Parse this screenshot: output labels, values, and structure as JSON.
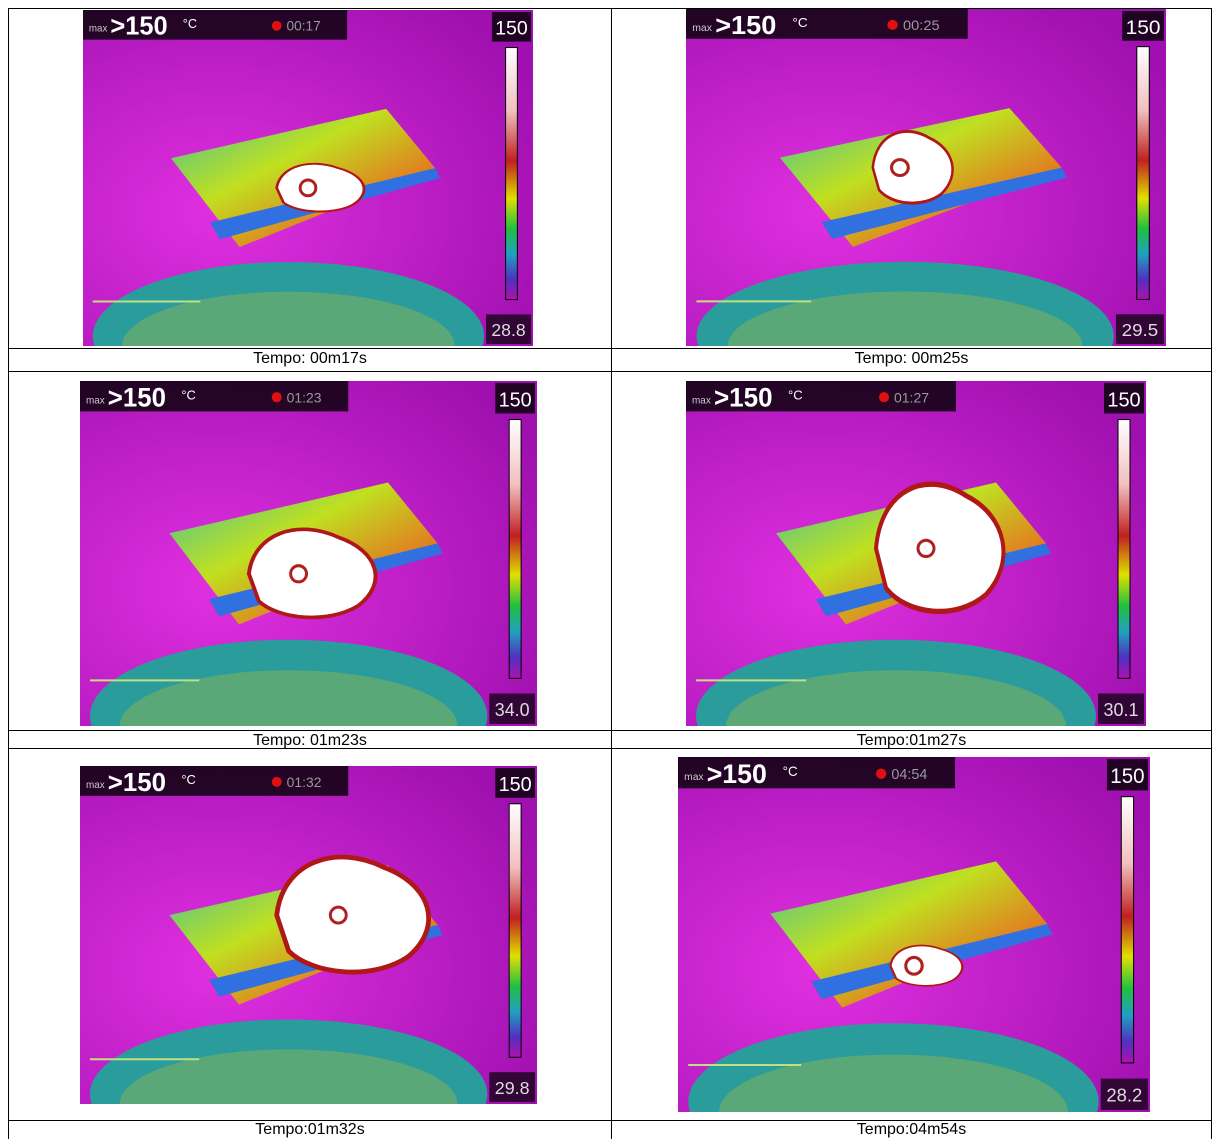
{
  "panels": [
    {
      "caption": "Tempo: 00m17s",
      "max_label": "max",
      "max_value": ">150",
      "unit": "°C",
      "time": "00:17",
      "scale_max": "150",
      "reading": "28.8"
    },
    {
      "caption": "Tempo: 00m25s",
      "max_label": "max",
      "max_value": ">150",
      "unit": "°C",
      "time": "00:25",
      "scale_max": "150",
      "reading": "29.5"
    },
    {
      "caption": "Tempo: 01m23s",
      "max_label": "max",
      "max_value": ">150",
      "unit": "°C",
      "time": "01:23",
      "scale_max": "150",
      "reading": "34.0"
    },
    {
      "caption": "Tempo:01m27s",
      "max_label": "max",
      "max_value": ">150",
      "unit": "°C",
      "time": "01:27",
      "scale_max": "150",
      "reading": "30.1"
    },
    {
      "caption": "Tempo:01m32s",
      "max_label": "max",
      "max_value": ">150",
      "unit": "°C",
      "time": "01:32",
      "scale_max": "150",
      "reading": "29.8"
    },
    {
      "caption": "Tempo:04m54s",
      "max_label": "max",
      "max_value": ">150",
      "unit": "°C",
      "time": "04:54",
      "scale_max": "150",
      "reading": "28.2"
    }
  ]
}
